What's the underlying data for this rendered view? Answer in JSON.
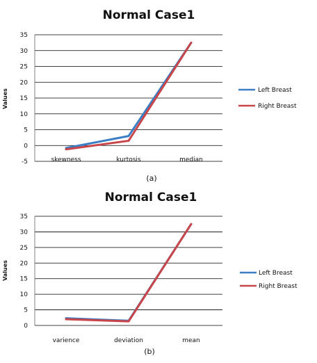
{
  "colors": {
    "left": "#3a7ec4",
    "right": "#c8464a",
    "grid": "#000000",
    "axis": "#808080"
  },
  "chart_data": [
    {
      "type": "line",
      "title": "Normal Case1",
      "ylabel": "Values",
      "caption": "(a)",
      "categories": [
        "skewness",
        "kurtosis",
        "median"
      ],
      "ylim": [
        -5,
        35
      ],
      "yticks": [
        -5,
        0,
        5,
        10,
        15,
        20,
        25,
        30,
        35
      ],
      "grid": true,
      "legend": "right",
      "series": [
        {
          "name": "Left Breast",
          "values": [
            -0.8,
            3,
            32.5
          ]
        },
        {
          "name": "Right Breast",
          "values": [
            -1.2,
            1.5,
            32.5
          ]
        }
      ]
    },
    {
      "type": "line",
      "title": "Normal Case1",
      "ylabel": "Values",
      "caption": "(b)",
      "categories": [
        "varience",
        "deviation",
        "mean"
      ],
      "ylim": [
        0,
        35
      ],
      "yticks": [
        0,
        5,
        10,
        15,
        20,
        25,
        30,
        35
      ],
      "grid": true,
      "legend": "right",
      "series": [
        {
          "name": "Left Breast",
          "values": [
            2.3,
            1.5,
            32.5
          ]
        },
        {
          "name": "Right Breast",
          "values": [
            2.0,
            1.3,
            32.5
          ]
        }
      ]
    }
  ]
}
